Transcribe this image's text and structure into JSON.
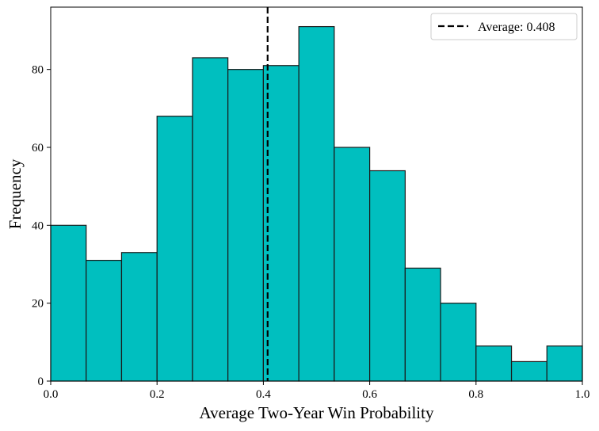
{
  "chart_data": {
    "type": "bar",
    "subtype": "histogram",
    "xlabel": "Average Two-Year Win Probability",
    "ylabel": "Frequency",
    "xlim": [
      0.0,
      1.0
    ],
    "ylim": [
      0,
      96
    ],
    "xticks": [
      0.0,
      0.2,
      0.4,
      0.6,
      0.8,
      1.0
    ],
    "xtick_labels": [
      "0.0",
      "0.2",
      "0.4",
      "0.6",
      "0.8",
      "1.0"
    ],
    "yticks": [
      0,
      20,
      40,
      60,
      80
    ],
    "ytick_labels": [
      "0",
      "20",
      "40",
      "60",
      "80"
    ],
    "bin_edges": [
      0.0,
      0.0667,
      0.1333,
      0.2,
      0.2667,
      0.3333,
      0.4,
      0.4667,
      0.5333,
      0.6,
      0.6667,
      0.7333,
      0.8,
      0.8667,
      0.9333,
      1.0
    ],
    "values": [
      40,
      31,
      33,
      68,
      83,
      80,
      81,
      91,
      60,
      54,
      29,
      20,
      9,
      5,
      9
    ],
    "bar_color": "#00bfbf",
    "edge_color": "#1a1a1a",
    "vline": {
      "x": 0.408,
      "style": "dashed",
      "color": "#000000"
    },
    "legend": {
      "position": "top-right",
      "entries": [
        "Average: 0.408"
      ]
    },
    "grid": false
  }
}
